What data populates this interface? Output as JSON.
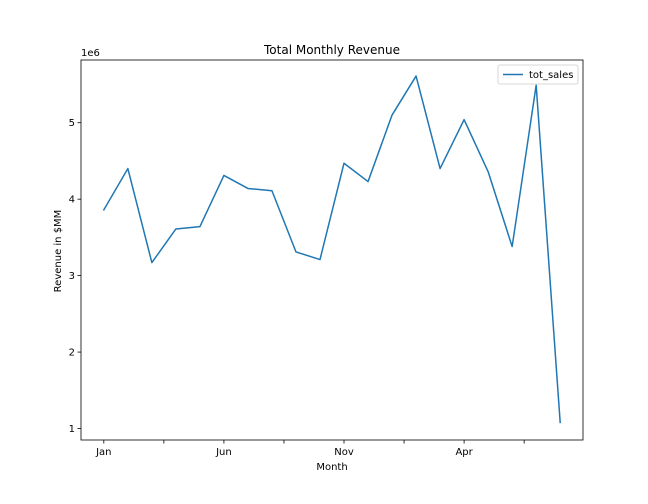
{
  "chart_data": {
    "type": "line",
    "title": "Total Monthly Revenue",
    "xlabel": "Month",
    "ylabel": "Revenue in $MM",
    "y_offset_label": "1e6",
    "legend": {
      "position": "top-right",
      "entries": [
        "tot_sales"
      ]
    },
    "grid": false,
    "x": [
      0,
      1,
      2,
      3,
      4,
      5,
      6,
      7,
      8,
      9,
      10,
      11,
      12,
      13,
      14,
      15,
      16,
      17,
      18,
      19
    ],
    "xlim": [
      -0.95,
      19.95
    ],
    "ylim": [
      0.85,
      5.82
    ],
    "x_ticks": [
      {
        "pos": 0,
        "label": "Jan"
      },
      {
        "pos": 2.5,
        "label": ""
      },
      {
        "pos": 5,
        "label": "Jun"
      },
      {
        "pos": 7.5,
        "label": ""
      },
      {
        "pos": 10,
        "label": "Nov"
      },
      {
        "pos": 12.5,
        "label": ""
      },
      {
        "pos": 15,
        "label": "Apr"
      },
      {
        "pos": 17.5,
        "label": ""
      }
    ],
    "y_ticks": [
      {
        "value": 1,
        "label": "1"
      },
      {
        "value": 2,
        "label": "2"
      },
      {
        "value": 3,
        "label": "3"
      },
      {
        "value": 4,
        "label": "4"
      },
      {
        "value": 5,
        "label": "5"
      }
    ],
    "series": [
      {
        "name": "tot_sales",
        "color": "#1f77b4",
        "values": [
          3.86,
          4.4,
          3.17,
          3.61,
          3.64,
          4.31,
          4.14,
          4.11,
          3.31,
          3.21,
          4.47,
          4.23,
          5.1,
          5.61,
          4.4,
          5.04,
          4.36,
          3.38,
          5.49,
          1.08
        ]
      }
    ]
  }
}
